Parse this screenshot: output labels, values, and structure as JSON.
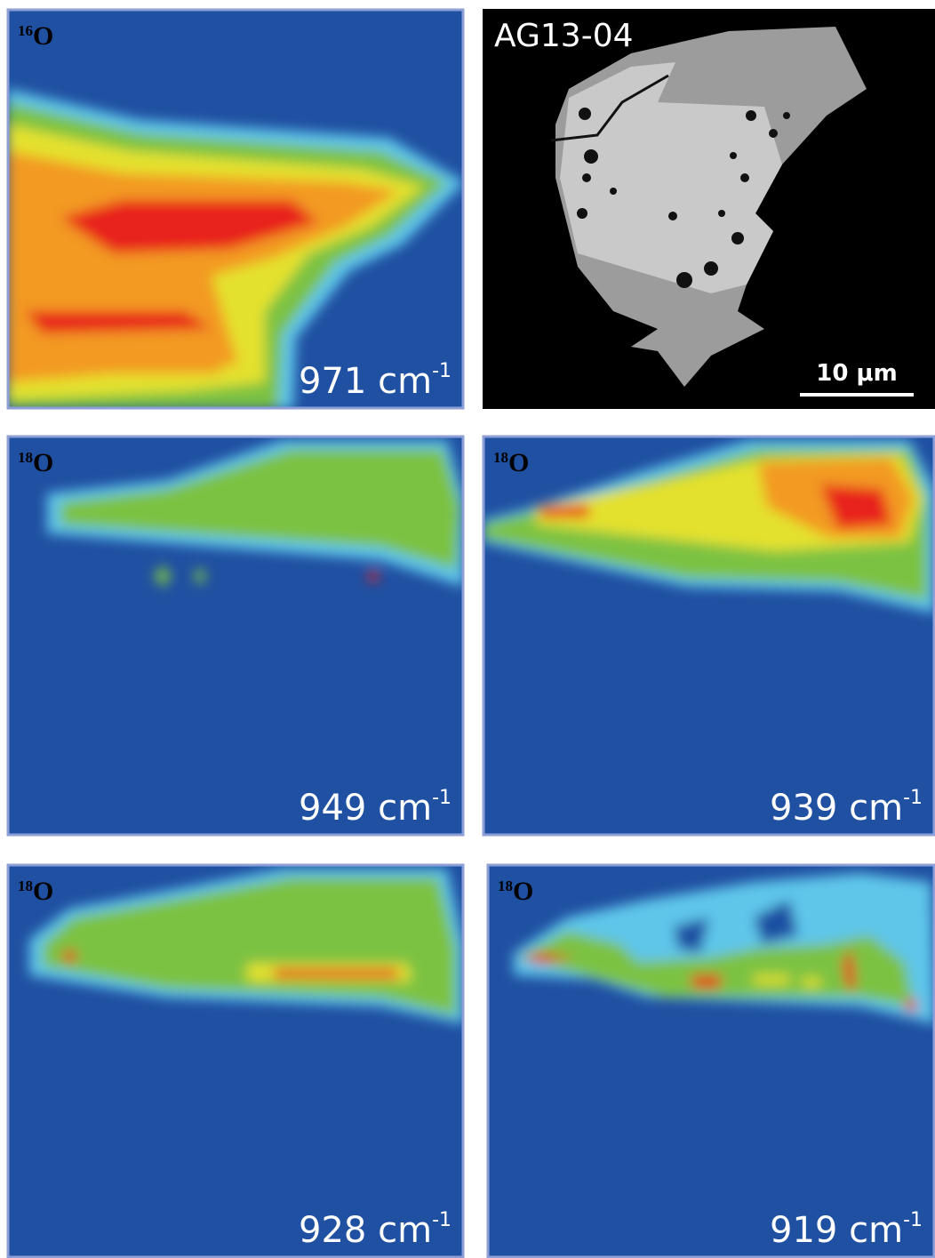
{
  "figure": {
    "panels": [
      {
        "isotope": {
          "mass": "16",
          "element": "O"
        },
        "wavenumber": {
          "value": "971 cm",
          "exponent": "-1"
        }
      },
      {
        "sample": "AG13-04",
        "scale_bar": "10 μm"
      },
      {
        "isotope": {
          "mass": "18",
          "element": "O"
        },
        "wavenumber": {
          "value": "949 cm",
          "exponent": "-1"
        }
      },
      {
        "isotope": {
          "mass": "18",
          "element": "O"
        },
        "wavenumber": {
          "value": "939 cm",
          "exponent": "-1"
        }
      },
      {
        "isotope": {
          "mass": "18",
          "element": "O"
        },
        "wavenumber": {
          "value": "928 cm",
          "exponent": "-1"
        }
      },
      {
        "isotope": {
          "mass": "18",
          "element": "O"
        },
        "wavenumber": {
          "value": "919 cm",
          "exponent": "-1"
        }
      }
    ]
  }
}
